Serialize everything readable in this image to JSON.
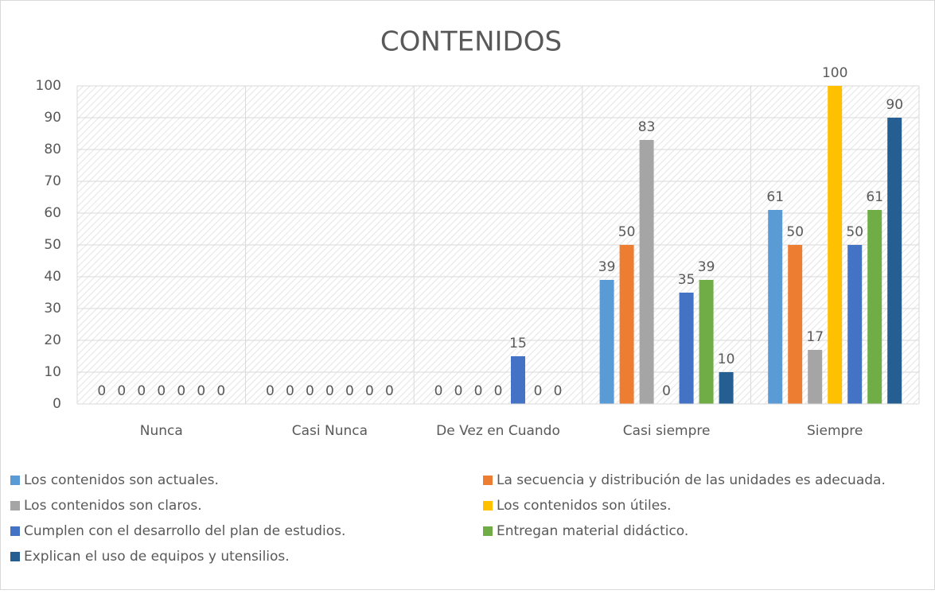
{
  "chart_data": {
    "type": "bar",
    "title": "CONTENIDOS",
    "categories": [
      "Nunca",
      "Casi Nunca",
      "De Vez en Cuando",
      "Casi siempre",
      "Siempre"
    ],
    "series": [
      {
        "name": "Los contenidos son actuales.",
        "color": "#5b9bd5",
        "values": [
          0,
          0,
          0,
          39,
          61
        ]
      },
      {
        "name": "La secuencia y distribución de las unidades es adecuada.",
        "color": "#ed7d31",
        "values": [
          0,
          0,
          0,
          50,
          50
        ]
      },
      {
        "name": "Los contenidos son claros.",
        "color": "#a5a5a5",
        "values": [
          0,
          0,
          0,
          83,
          17
        ]
      },
      {
        "name": "Los contenidos son útiles.",
        "color": "#ffc000",
        "values": [
          0,
          0,
          0,
          0,
          100
        ]
      },
      {
        "name": "Cumplen con el desarrollo del plan de estudios.",
        "color": "#4472c4",
        "values": [
          0,
          0,
          15,
          35,
          50
        ]
      },
      {
        "name": "Entregan material didáctico.",
        "color": "#70ad47",
        "values": [
          0,
          0,
          0,
          39,
          61
        ]
      },
      {
        "name": "Explican el uso de equipos y utensilios.",
        "color": "#255e91",
        "values": [
          0,
          0,
          0,
          10,
          90
        ]
      }
    ],
    "ylim": [
      0,
      100
    ],
    "yticks": [
      0,
      10,
      20,
      30,
      40,
      50,
      60,
      70,
      80,
      90,
      100
    ],
    "grid": true,
    "legend": "bottom"
  }
}
